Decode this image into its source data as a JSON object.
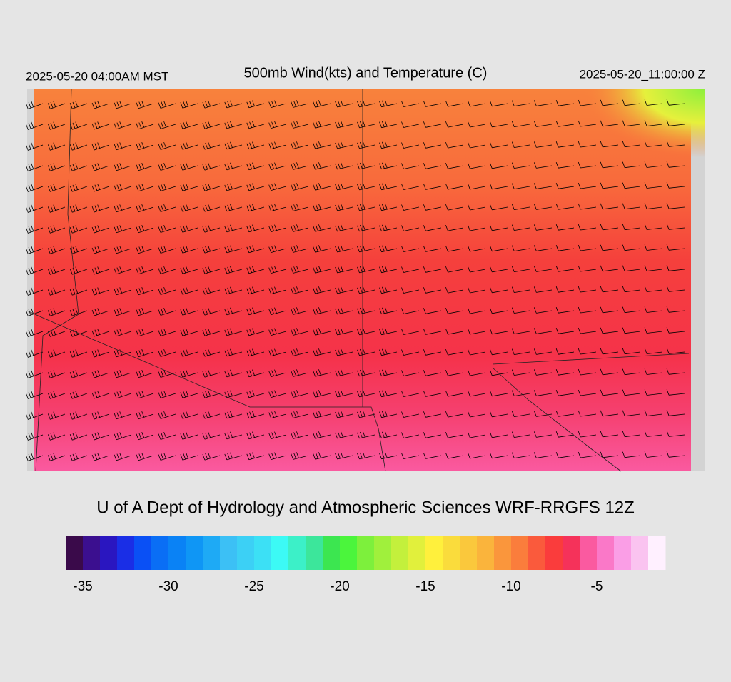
{
  "header": {
    "left": "2025-05-20 04:00AM MST",
    "title": "500mb Wind(kts) and Temperature (C)",
    "right": "2025-05-20_11:00:00 Z"
  },
  "credit": "U of A Dept of Hydrology and Atmospheric Sciences WRF-RRGFS 12Z",
  "colorbar": {
    "range": [
      -36,
      -1
    ],
    "ticks": [
      -35,
      -30,
      -25,
      -20,
      -15,
      -10,
      -5
    ],
    "colors": [
      "#3a0a4a",
      "#3b0f8f",
      "#2a16c0",
      "#1a2ee6",
      "#0a50f5",
      "#0a6ef5",
      "#0a82f5",
      "#0f96f5",
      "#1eaaf5",
      "#3cc0f5",
      "#3cd0f5",
      "#3ce0f5",
      "#3cfaf5",
      "#3cf0c8",
      "#3ce69b",
      "#3ce650",
      "#4bf53c",
      "#7df03c",
      "#a0f03c",
      "#c3f03c",
      "#e1f03c",
      "#fff03c",
      "#fadc3c",
      "#fac83c",
      "#fab43c",
      "#fa963c",
      "#fa7d3c",
      "#fa5a3c",
      "#fa3c3c",
      "#f5325a",
      "#fa5aa0",
      "#fa78c8",
      "#fa9ee6",
      "#fac3f0",
      "#fff0ff"
    ]
  }
}
